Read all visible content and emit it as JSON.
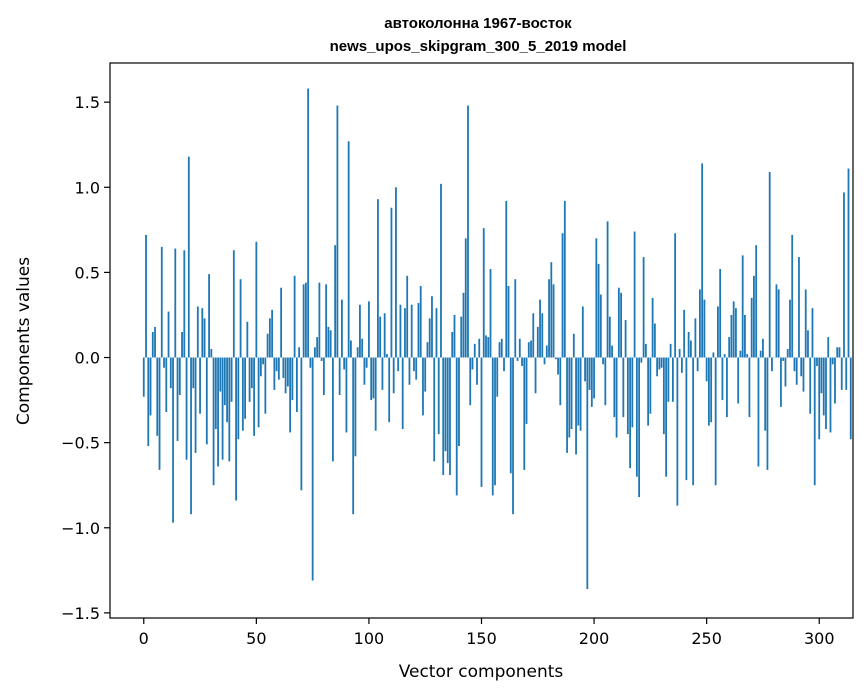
{
  "chart_data": {
    "type": "bar",
    "title_lines": [
      "автоколонна 1967-восток",
      "news_upos_skipgram_300_5_2019 model"
    ],
    "xlabel": "Vector components",
    "ylabel": "Components values",
    "xlim": [
      -15,
      315
    ],
    "ylim": [
      -1.53,
      1.73
    ],
    "xticks": [
      0,
      50,
      100,
      150,
      200,
      250,
      300
    ],
    "xtick_labels": [
      "0",
      "50",
      "100",
      "150",
      "200",
      "250",
      "300"
    ],
    "yticks": [
      -1.5,
      -1.0,
      -0.5,
      0.0,
      0.5,
      1.0,
      1.5
    ],
    "ytick_labels": [
      "−1.5",
      "−1.0",
      "−0.5",
      "0.0",
      "0.5",
      "1.0",
      "1.5"
    ],
    "bar_color": "#1f77b4",
    "values": [
      -0.23,
      0.72,
      -0.52,
      -0.34,
      0.15,
      0.18,
      -0.46,
      -0.66,
      0.65,
      -0.06,
      -0.32,
      0.27,
      -0.18,
      -0.97,
      0.64,
      -0.49,
      -0.22,
      0.15,
      0.63,
      -0.6,
      1.18,
      -0.92,
      -0.18,
      -0.56,
      0.3,
      -0.33,
      0.29,
      0.23,
      -0.51,
      0.49,
      0.05,
      -0.75,
      -0.42,
      -0.64,
      -0.2,
      -0.6,
      -0.28,
      -0.38,
      -0.61,
      -0.26,
      0.63,
      -0.84,
      -0.48,
      0.46,
      -0.43,
      -0.36,
      0.21,
      -0.26,
      -0.18,
      -0.46,
      0.68,
      -0.41,
      -0.11,
      -0.04,
      -0.33,
      0.14,
      0.23,
      0.28,
      -0.19,
      -0.08,
      -0.13,
      0.41,
      -0.12,
      -0.21,
      -0.17,
      -0.44,
      -0.25,
      0.48,
      -0.32,
      0.06,
      -0.78,
      0.43,
      0.44,
      1.58,
      -0.06,
      -1.31,
      0.06,
      0.12,
      0.44,
      -0.02,
      -0.22,
      0.43,
      0.18,
      0.16,
      -0.61,
      0.66,
      1.48,
      -0.22,
      0.34,
      -0.07,
      -0.44,
      1.27,
      0.1,
      -0.92,
      -0.58,
      0.06,
      0.31,
      0.11,
      -0.16,
      -0.06,
      0.33,
      -0.25,
      -0.24,
      -0.43,
      0.93,
      0.24,
      -0.19,
      0.26,
      0.02,
      -0.38,
      0.88,
      -0.21,
      1.0,
      -0.08,
      0.31,
      -0.42,
      0.29,
      0.48,
      -0.16,
      0.31,
      -0.08,
      -0.13,
      0.32,
      0.42,
      -0.34,
      -0.2,
      0.09,
      0.23,
      0.36,
      -0.61,
      0.29,
      -0.45,
      1.02,
      -0.69,
      -0.55,
      -0.62,
      -0.69,
      0.15,
      0.25,
      -0.81,
      -0.52,
      0.24,
      0.38,
      0.7,
      1.48,
      -0.28,
      -0.07,
      0.08,
      -0.16,
      0.11,
      -0.76,
      0.76,
      0.13,
      0.12,
      0.52,
      -0.81,
      -0.75,
      -0.23,
      0.09,
      0.11,
      -0.08,
      0.92,
      0.42,
      -0.68,
      -0.92,
      0.46,
      -0.02,
      0.11,
      -0.05,
      -0.66,
      -0.39,
      0.09,
      0.1,
      0.26,
      -0.21,
      0.18,
      0.34,
      0.26,
      -0.04,
      0.07,
      0.46,
      0.56,
      0.43,
      -0.01,
      -0.1,
      -0.28,
      0.73,
      0.92,
      -0.56,
      -0.47,
      -0.42,
      0.14,
      -0.57,
      -0.4,
      -0.43,
      0.3,
      -0.14,
      -1.36,
      -0.19,
      -0.29,
      -0.24,
      0.7,
      0.55,
      0.37,
      -0.04,
      -0.28,
      0.8,
      0.24,
      0.07,
      -0.35,
      -0.47,
      0.41,
      0.38,
      -0.35,
      0.22,
      -0.45,
      -0.65,
      -0.41,
      0.74,
      -0.7,
      -0.82,
      -0.03,
      0.59,
      0.08,
      -0.4,
      -0.33,
      0.35,
      0.2,
      -0.11,
      -0.07,
      -0.06,
      -0.45,
      -0.7,
      -0.26,
      0.08,
      -0.26,
      0.73,
      -0.87,
      0.05,
      -0.09,
      0.28,
      -0.72,
      0.15,
      0.1,
      -0.75,
      0.23,
      -0.08,
      0.4,
      1.14,
      0.34,
      -0.14,
      -0.4,
      -0.38,
      0.03,
      -0.75,
      0.3,
      0.52,
      -0.25,
      0.02,
      -0.35,
      0.12,
      0.25,
      0.33,
      0.29,
      -0.27,
      0.04,
      0.6,
      0.25,
      0.02,
      -0.35,
      0.35,
      0.48,
      0.66,
      -0.64,
      0.04,
      0.11,
      -0.43,
      -0.66,
      1.09,
      -0.08,
      0.0,
      0.43,
      0.4,
      -0.29,
      -0.02,
      -0.17,
      0.05,
      0.34,
      0.72,
      -0.08,
      -0.16,
      0.59,
      -0.11,
      -0.2,
      0.4,
      0.16,
      -0.33,
      0.29,
      -0.75,
      -0.05,
      -0.48,
      -0.21,
      -0.34,
      -0.42,
      0.12,
      -0.44,
      -0.04,
      -0.27,
      0.06,
      0.06,
      -0.19,
      0.97,
      -0.19,
      1.11,
      -0.48
    ]
  }
}
